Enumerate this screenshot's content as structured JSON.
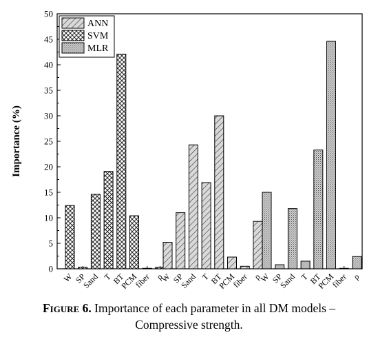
{
  "chart_data": {
    "type": "bar",
    "ylabel": "Importance (%)",
    "xlabel": "",
    "ylim": [
      0,
      50
    ],
    "yticks": [
      0,
      5,
      10,
      15,
      20,
      25,
      30,
      35,
      40,
      45,
      50
    ],
    "categories": [
      "W",
      "SP",
      "Sand",
      "T",
      "BT",
      "PCM",
      "fiber",
      "ρ"
    ],
    "legend_position": "top-left",
    "series": [
      {
        "name": "ANN",
        "pattern": "diagonal-lines",
        "values": [
          5.2,
          11.0,
          24.3,
          16.9,
          30.0,
          2.3,
          0.5,
          9.3
        ]
      },
      {
        "name": "SVM",
        "pattern": "crosshatch",
        "values": [
          12.4,
          0.3,
          14.6,
          19.1,
          42.1,
          10.4,
          0.1,
          0.3
        ]
      },
      {
        "name": "MLR",
        "pattern": "dots",
        "values": [
          15.0,
          0.8,
          11.8,
          1.5,
          23.3,
          44.6,
          0.1,
          2.4
        ]
      }
    ],
    "group_order": [
      "SVM",
      "ANN",
      "MLR"
    ]
  },
  "caption": {
    "label_first": "F",
    "label_rest": "IGURE",
    "label_number": "6.",
    "text_line1": "Importance of each parameter in all DM models –",
    "text_line2": "Compressive strength."
  }
}
